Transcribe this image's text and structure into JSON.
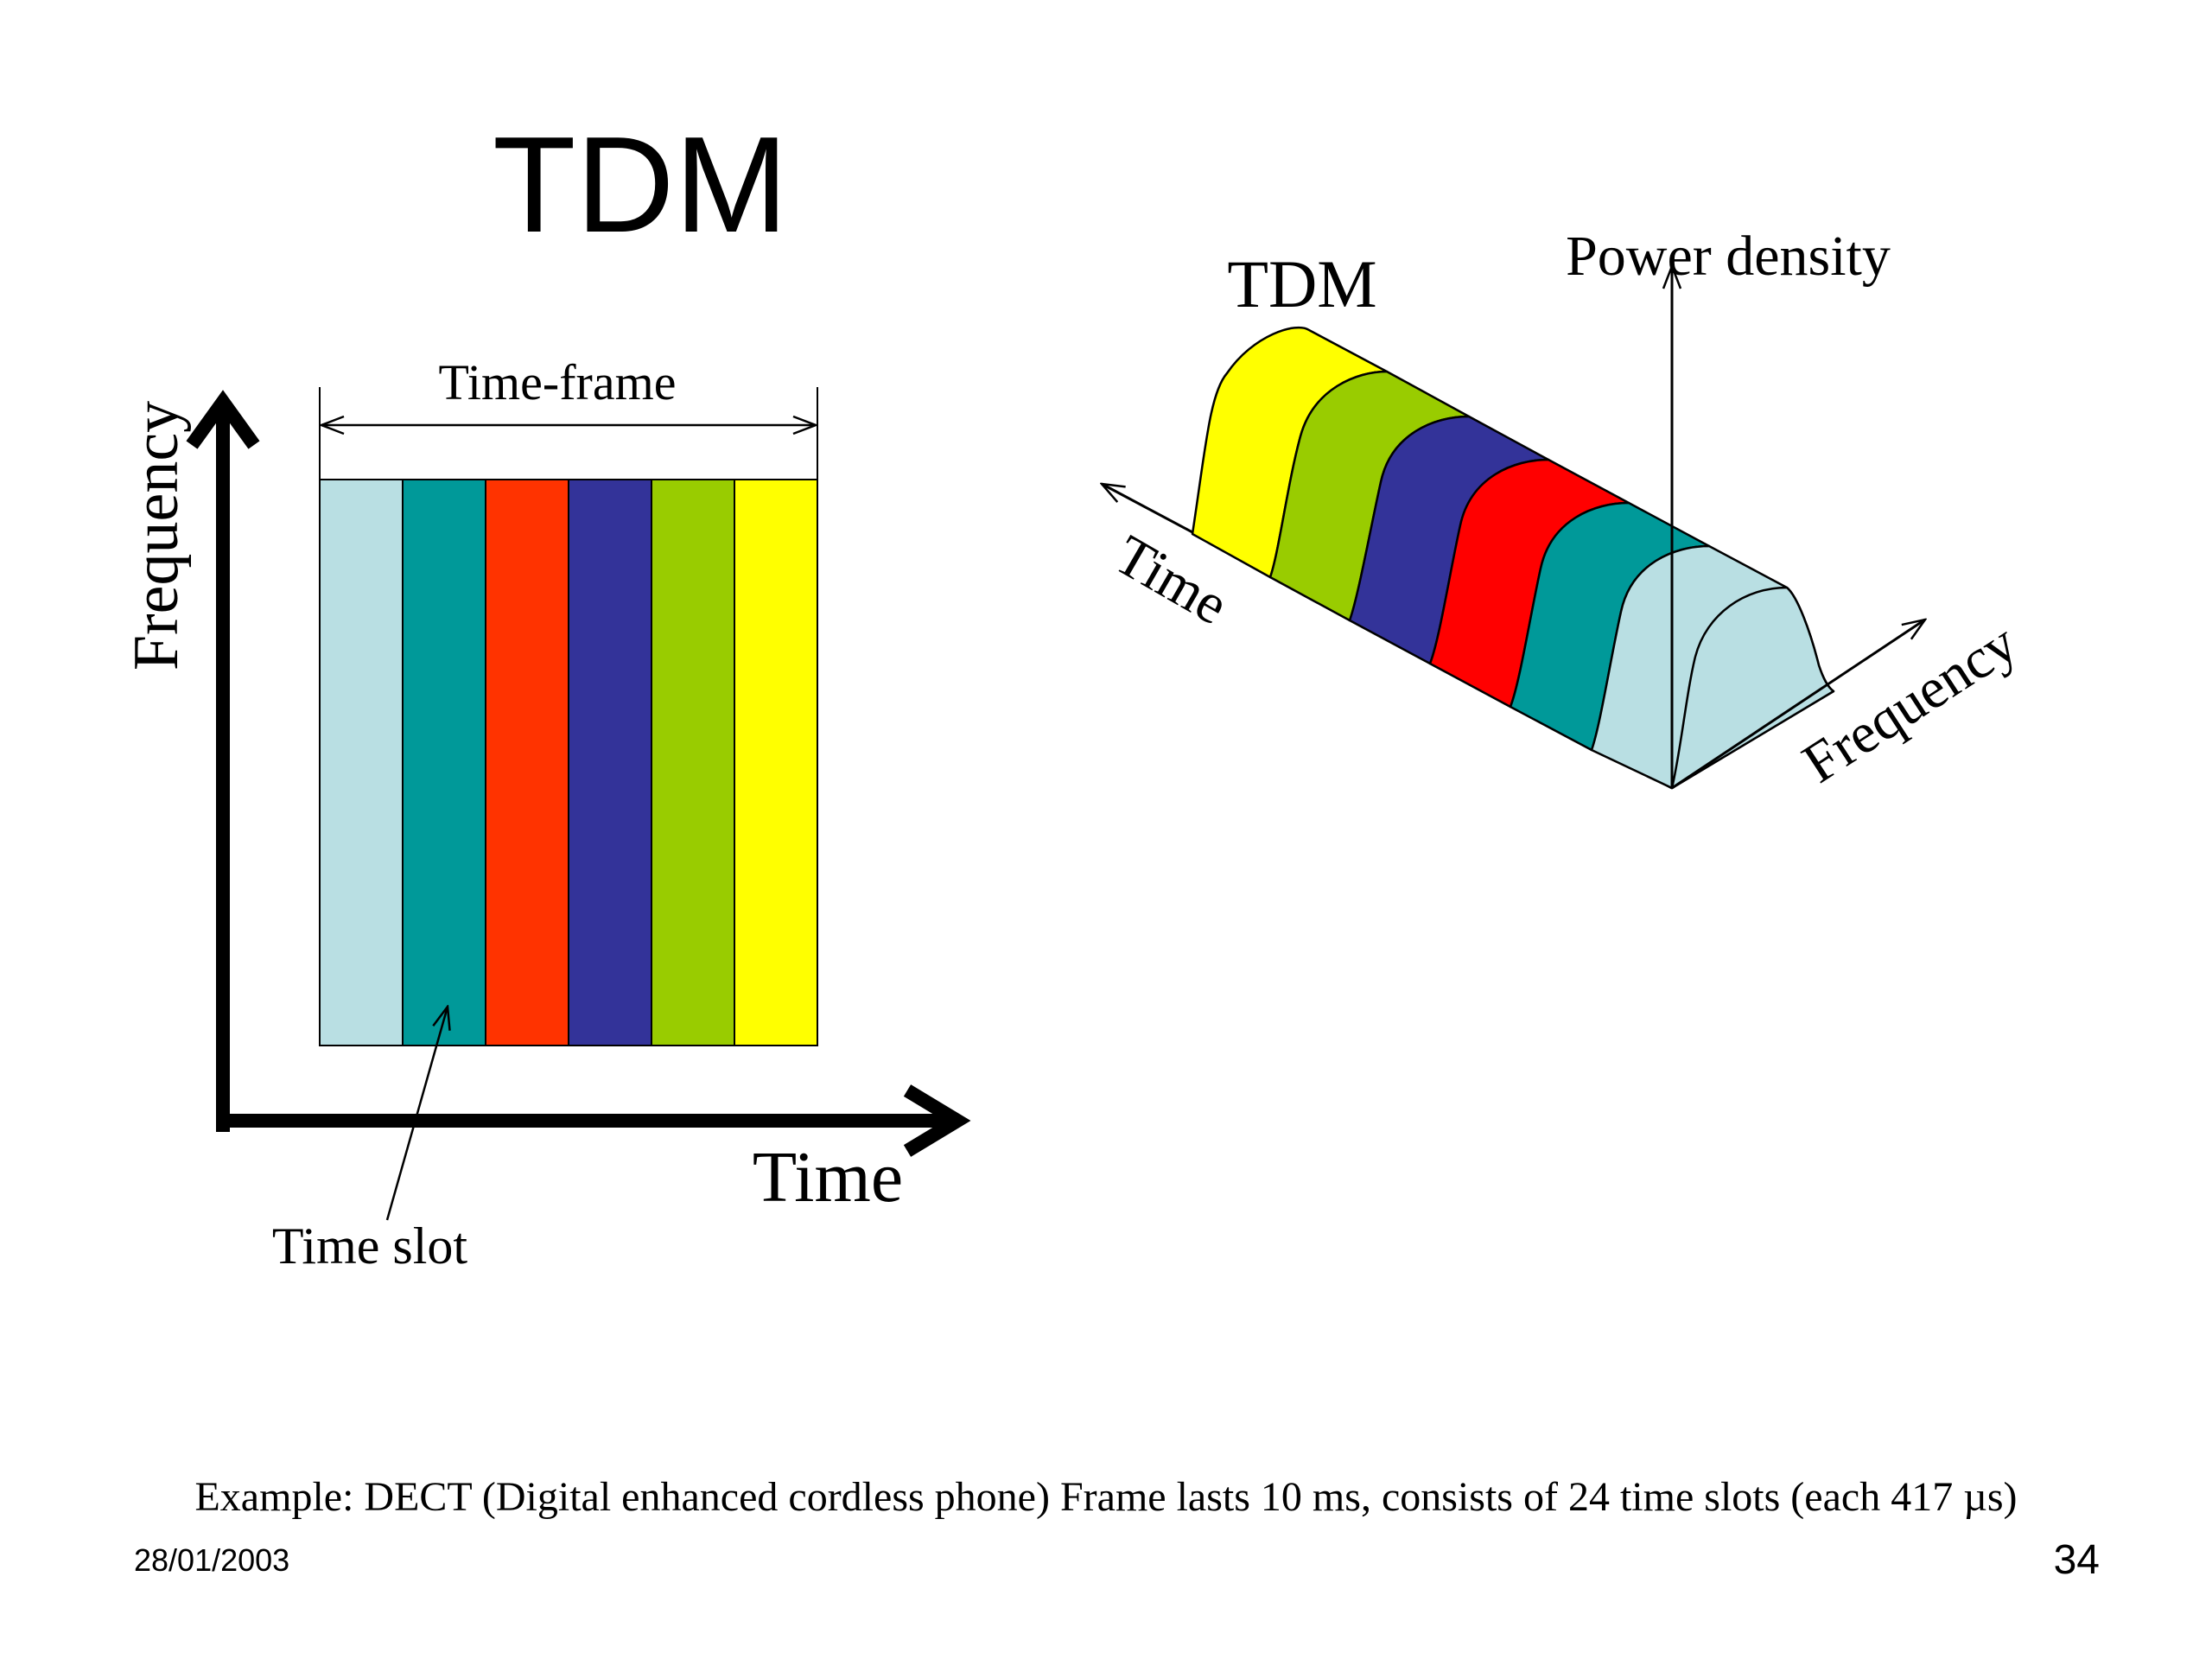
{
  "slide": {
    "title": "TDM",
    "caption": "Example: DECT (Digital enhanced cordless phone) Frame lasts 10 ms, consists of 24 time slots (each 417 µs)",
    "date": "28/01/2003",
    "page_number": "34"
  },
  "left_diagram": {
    "y_axis_label": "Frequency",
    "x_axis_label": "Time",
    "frame_label": "Time-frame",
    "slot_label": "Time slot",
    "slot_colors": [
      "#b9dfe3",
      "#009999",
      "#ff3300",
      "#333399",
      "#99cc00",
      "#ffff00"
    ]
  },
  "right_diagram": {
    "title": "TDM",
    "power_axis_label": "Power density",
    "time_axis_label": "Time",
    "frequency_axis_label": "Frequency",
    "slot_colors": [
      "#ffff00",
      "#99cc00",
      "#333399",
      "#ff0000",
      "#009999",
      "#b9dfe3"
    ]
  }
}
